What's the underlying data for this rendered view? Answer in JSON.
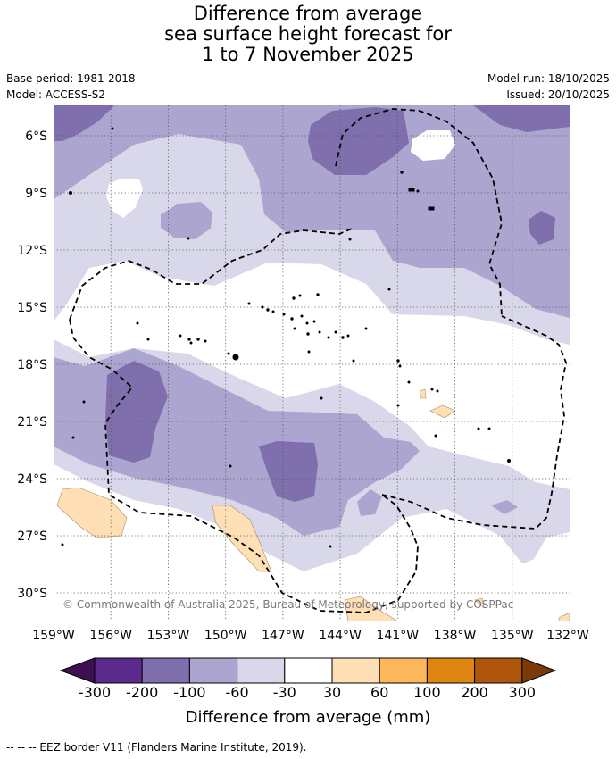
{
  "title": {
    "line1": "Difference from average",
    "line2": "sea surface height forecast for",
    "line3": "1 to 7 November 2025"
  },
  "meta": {
    "base_period": "Base period: 1981-2018",
    "model": "Model: ACCESS-S2",
    "model_run": "Model run: 18/10/2025",
    "issued": "Issued: 20/10/2025"
  },
  "map": {
    "lon_labels": [
      "159°W",
      "156°W",
      "153°W",
      "150°W",
      "147°W",
      "144°W",
      "141°W",
      "138°W",
      "135°W",
      "132°W"
    ],
    "lat_labels": [
      "6°S",
      "9°S",
      "12°S",
      "15°S",
      "18°S",
      "21°S",
      "24°S",
      "27°S",
      "30°S"
    ],
    "copyright": "© Commonwealth of Australia 2025, Bureau of Meteorology, supported by COSPPac"
  },
  "colorbar": {
    "ticks": [
      "-300",
      "-200",
      "-100",
      "-60",
      "-30",
      "30",
      "60",
      "100",
      "200",
      "300"
    ],
    "title": "Difference from average (mm)",
    "colors": {
      "under": "#3f0f55",
      "b1": "#5a2a8c",
      "b2": "#7f6fad",
      "b3": "#aba5cf",
      "b4": "#d8d8ea",
      "b5": "#ffffff",
      "b6": "#ffdfb5",
      "b7": "#fbb75a",
      "b8": "#e08512",
      "b9": "#b0560a",
      "over": "#7d3a09"
    }
  },
  "footnote": "--  --  -- EEZ border V11 (Flanders Marine Institute, 2019)."
}
